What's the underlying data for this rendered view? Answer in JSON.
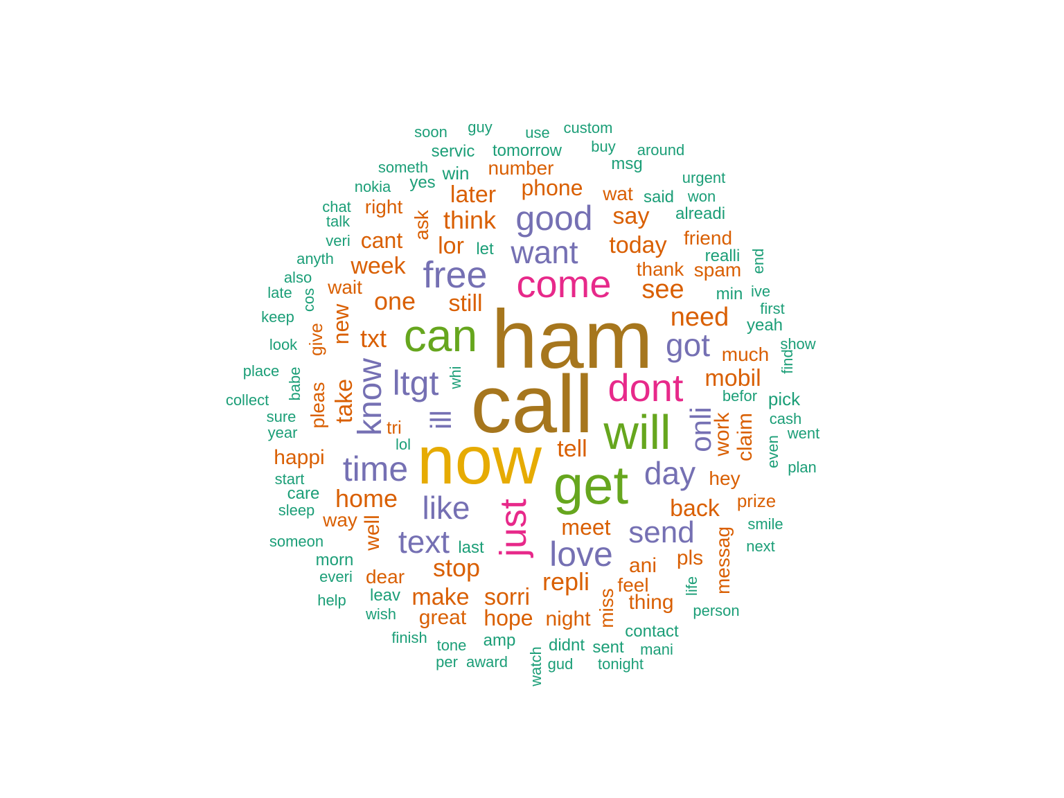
{
  "palette": {
    "brown": "#A6761D",
    "gold": "#E6AB02",
    "green": "#66A61E",
    "magenta": "#E7298A",
    "purple": "#7570B3",
    "orange": "#D95F02",
    "teal": "#1B9E77"
  },
  "words": [
    {
      "text": "ham",
      "color": "brown"
    },
    {
      "text": "call",
      "color": "brown"
    },
    {
      "text": "now",
      "color": "gold"
    },
    {
      "text": "get",
      "color": "green"
    },
    {
      "text": "can",
      "color": "green"
    },
    {
      "text": "will",
      "color": "green"
    },
    {
      "text": "just",
      "color": "magenta"
    },
    {
      "text": "come",
      "color": "magenta"
    },
    {
      "text": "dont",
      "color": "magenta"
    },
    {
      "text": "free",
      "color": "purple"
    },
    {
      "text": "good",
      "color": "purple"
    },
    {
      "text": "want",
      "color": "purple"
    },
    {
      "text": "know",
      "color": "purple"
    },
    {
      "text": "ltgt",
      "color": "purple"
    },
    {
      "text": "time",
      "color": "purple"
    },
    {
      "text": "like",
      "color": "purple"
    },
    {
      "text": "text",
      "color": "purple"
    },
    {
      "text": "love",
      "color": "purple"
    },
    {
      "text": "day",
      "color": "purple"
    },
    {
      "text": "got",
      "color": "purple"
    },
    {
      "text": "send",
      "color": "purple"
    },
    {
      "text": "onli",
      "color": "purple"
    },
    {
      "text": "ill",
      "color": "purple"
    },
    {
      "text": "later",
      "color": "orange"
    },
    {
      "text": "phone",
      "color": "orange"
    },
    {
      "text": "number",
      "color": "orange"
    },
    {
      "text": "think",
      "color": "orange"
    },
    {
      "text": "say",
      "color": "orange"
    },
    {
      "text": "today",
      "color": "orange"
    },
    {
      "text": "cant",
      "color": "orange"
    },
    {
      "text": "lor",
      "color": "orange"
    },
    {
      "text": "week",
      "color": "orange"
    },
    {
      "text": "one",
      "color": "orange"
    },
    {
      "text": "still",
      "color": "orange"
    },
    {
      "text": "see",
      "color": "orange"
    },
    {
      "text": "need",
      "color": "orange"
    },
    {
      "text": "txt",
      "color": "orange"
    },
    {
      "text": "mobil",
      "color": "orange"
    },
    {
      "text": "much",
      "color": "orange"
    },
    {
      "text": "take",
      "color": "orange"
    },
    {
      "text": "tell",
      "color": "orange"
    },
    {
      "text": "home",
      "color": "orange"
    },
    {
      "text": "back",
      "color": "orange"
    },
    {
      "text": "meet",
      "color": "orange"
    },
    {
      "text": "repli",
      "color": "orange"
    },
    {
      "text": "stop",
      "color": "orange"
    },
    {
      "text": "sorri",
      "color": "orange"
    },
    {
      "text": "make",
      "color": "orange"
    },
    {
      "text": "hope",
      "color": "orange"
    },
    {
      "text": "night",
      "color": "orange"
    },
    {
      "text": "great",
      "color": "orange"
    },
    {
      "text": "thing",
      "color": "orange"
    },
    {
      "text": "ani",
      "color": "orange"
    },
    {
      "text": "pls",
      "color": "orange"
    },
    {
      "text": "happi",
      "color": "orange"
    },
    {
      "text": "way",
      "color": "orange"
    },
    {
      "text": "dear",
      "color": "orange"
    },
    {
      "text": "feel",
      "color": "orange"
    },
    {
      "text": "hey",
      "color": "orange"
    },
    {
      "text": "prize",
      "color": "orange"
    },
    {
      "text": "wait",
      "color": "orange"
    },
    {
      "text": "friend",
      "color": "orange"
    },
    {
      "text": "thank",
      "color": "orange"
    },
    {
      "text": "spam",
      "color": "orange"
    },
    {
      "text": "right",
      "color": "orange"
    },
    {
      "text": "wat",
      "color": "orange"
    },
    {
      "text": "tri",
      "color": "orange"
    },
    {
      "text": "ask",
      "color": "orange"
    },
    {
      "text": "new",
      "color": "orange"
    },
    {
      "text": "give",
      "color": "orange"
    },
    {
      "text": "pleas",
      "color": "orange"
    },
    {
      "text": "well",
      "color": "orange"
    },
    {
      "text": "work",
      "color": "orange"
    },
    {
      "text": "claim",
      "color": "orange"
    },
    {
      "text": "messag",
      "color": "orange"
    },
    {
      "text": "miss",
      "color": "orange"
    },
    {
      "text": "soon",
      "color": "teal"
    },
    {
      "text": "guy",
      "color": "teal"
    },
    {
      "text": "use",
      "color": "teal"
    },
    {
      "text": "custom",
      "color": "teal"
    },
    {
      "text": "buy",
      "color": "teal"
    },
    {
      "text": "around",
      "color": "teal"
    },
    {
      "text": "servic",
      "color": "teal"
    },
    {
      "text": "tomorrow",
      "color": "teal"
    },
    {
      "text": "someth",
      "color": "teal"
    },
    {
      "text": "win",
      "color": "teal"
    },
    {
      "text": "msg",
      "color": "teal"
    },
    {
      "text": "urgent",
      "color": "teal"
    },
    {
      "text": "nokia",
      "color": "teal"
    },
    {
      "text": "yes",
      "color": "teal"
    },
    {
      "text": "said",
      "color": "teal"
    },
    {
      "text": "won",
      "color": "teal"
    },
    {
      "text": "chat",
      "color": "teal"
    },
    {
      "text": "talk",
      "color": "teal"
    },
    {
      "text": "alreadi",
      "color": "teal"
    },
    {
      "text": "veri",
      "color": "teal"
    },
    {
      "text": "let",
      "color": "teal"
    },
    {
      "text": "anyth",
      "color": "teal"
    },
    {
      "text": "realli",
      "color": "teal"
    },
    {
      "text": "also",
      "color": "teal"
    },
    {
      "text": "late",
      "color": "teal"
    },
    {
      "text": "min",
      "color": "teal"
    },
    {
      "text": "ive",
      "color": "teal"
    },
    {
      "text": "keep",
      "color": "teal"
    },
    {
      "text": "first",
      "color": "teal"
    },
    {
      "text": "yeah",
      "color": "teal"
    },
    {
      "text": "look",
      "color": "teal"
    },
    {
      "text": "show",
      "color": "teal"
    },
    {
      "text": "place",
      "color": "teal"
    },
    {
      "text": "collect",
      "color": "teal"
    },
    {
      "text": "befor",
      "color": "teal"
    },
    {
      "text": "pick",
      "color": "teal"
    },
    {
      "text": "sure",
      "color": "teal"
    },
    {
      "text": "cash",
      "color": "teal"
    },
    {
      "text": "year",
      "color": "teal"
    },
    {
      "text": "went",
      "color": "teal"
    },
    {
      "text": "lol",
      "color": "teal"
    },
    {
      "text": "plan",
      "color": "teal"
    },
    {
      "text": "start",
      "color": "teal"
    },
    {
      "text": "care",
      "color": "teal"
    },
    {
      "text": "sleep",
      "color": "teal"
    },
    {
      "text": "smile",
      "color": "teal"
    },
    {
      "text": "someon",
      "color": "teal"
    },
    {
      "text": "last",
      "color": "teal"
    },
    {
      "text": "next",
      "color": "teal"
    },
    {
      "text": "morn",
      "color": "teal"
    },
    {
      "text": "everi",
      "color": "teal"
    },
    {
      "text": "leav",
      "color": "teal"
    },
    {
      "text": "help",
      "color": "teal"
    },
    {
      "text": "wish",
      "color": "teal"
    },
    {
      "text": "person",
      "color": "teal"
    },
    {
      "text": "finish",
      "color": "teal"
    },
    {
      "text": "tone",
      "color": "teal"
    },
    {
      "text": "amp",
      "color": "teal"
    },
    {
      "text": "didnt",
      "color": "teal"
    },
    {
      "text": "sent",
      "color": "teal"
    },
    {
      "text": "contact",
      "color": "teal"
    },
    {
      "text": "mani",
      "color": "teal"
    },
    {
      "text": "per",
      "color": "teal"
    },
    {
      "text": "award",
      "color": "teal"
    },
    {
      "text": "gud",
      "color": "teal"
    },
    {
      "text": "tonight",
      "color": "teal"
    },
    {
      "text": "watch",
      "color": "teal"
    },
    {
      "text": "end",
      "color": "teal"
    },
    {
      "text": "cos",
      "color": "teal"
    },
    {
      "text": "babe",
      "color": "teal"
    },
    {
      "text": "whi",
      "color": "teal"
    },
    {
      "text": "find",
      "color": "teal"
    },
    {
      "text": "even",
      "color": "teal"
    },
    {
      "text": "life",
      "color": "teal"
    }
  ]
}
